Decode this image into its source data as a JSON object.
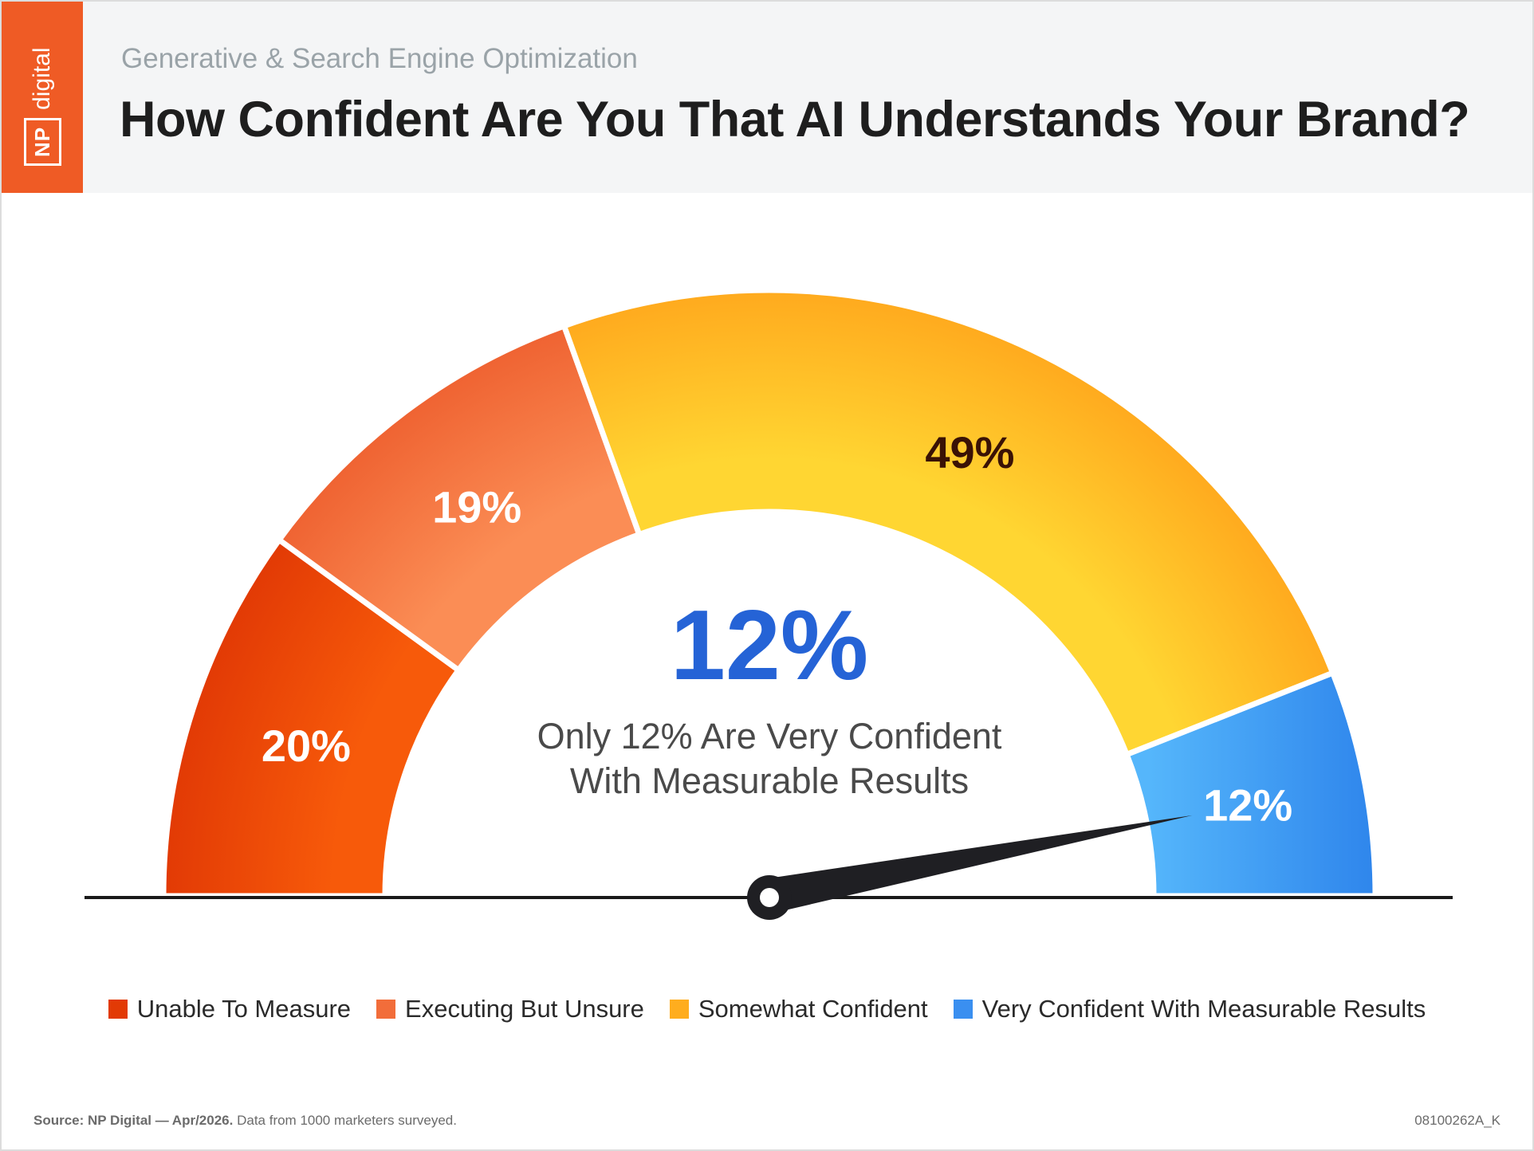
{
  "header": {
    "subtitle": "Generative & Search Engine Optimization",
    "title": "How Confident Are You That AI Understands Your Brand?",
    "logo_np": "NP",
    "logo_digital": "digital"
  },
  "chart_data": {
    "type": "gauge",
    "categories": [
      "Unable To Measure",
      "Executing But Unsure",
      "Somewhat Confident",
      "Very Confident With Measurable Results"
    ],
    "values": [
      20,
      19,
      49,
      12
    ],
    "labels": [
      "20%",
      "19%",
      "49%",
      "12%"
    ],
    "colors": [
      "#e8400c",
      "#f26d3a",
      "#ffb21e",
      "#3a8ff0"
    ],
    "callout": {
      "value": "12%",
      "text_line1": "Only 12% Are Very Confident",
      "text_line2": "With Measurable Results"
    },
    "needle_value_percent": 94,
    "legend_position": "bottom"
  },
  "footer": {
    "source_bold": "Source: NP Digital — Apr/2026.",
    "source_rest": " Data from 1000 marketers surveyed.",
    "code": "08100262A_K"
  }
}
